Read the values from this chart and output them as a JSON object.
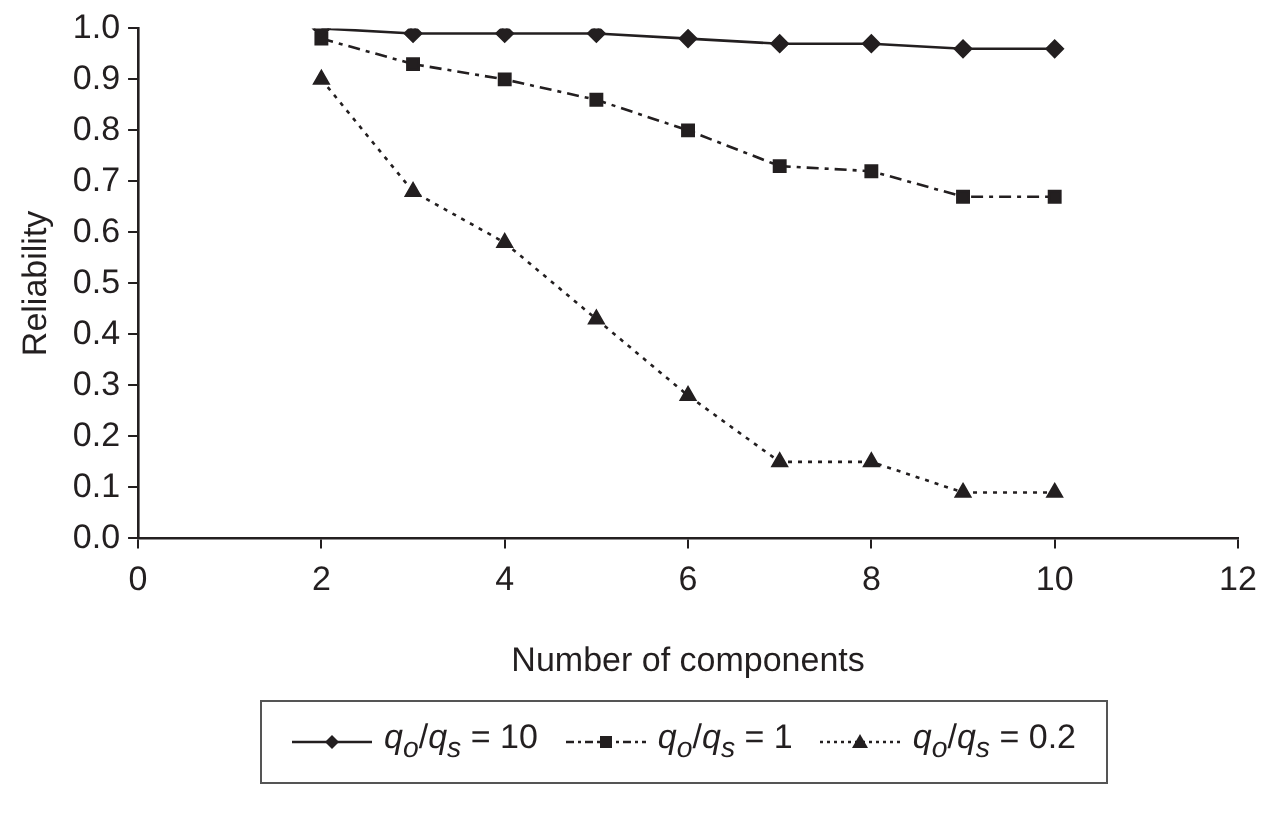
{
  "chart_data": {
    "type": "line",
    "xlabel": "Number of components",
    "ylabel": "Reliability",
    "x": [
      2,
      3,
      4,
      5,
      6,
      7,
      8,
      9,
      10
    ],
    "xlim": [
      0,
      12
    ],
    "xticks": [
      0,
      2,
      4,
      6,
      8,
      10,
      12
    ],
    "ylim": [
      0,
      1
    ],
    "yticks": [
      {
        "value": 0,
        "label": "0.0"
      },
      {
        "value": 0.1,
        "label": "0.1"
      },
      {
        "value": 0.2,
        "label": "0.2"
      },
      {
        "value": 0.3,
        "label": "0.3"
      },
      {
        "value": 0.4,
        "label": "0.4"
      },
      {
        "value": 0.5,
        "label": "0.5"
      },
      {
        "value": 0.6,
        "label": "0.6"
      },
      {
        "value": 0.7,
        "label": "0.7"
      },
      {
        "value": 0.8,
        "label": "0.8"
      },
      {
        "value": 0.9,
        "label": "0.9"
      },
      {
        "value": 1,
        "label": "1.0"
      }
    ],
    "grid": false,
    "legend": "bottom",
    "series": [
      {
        "name": "q$_{o}$/q$_{s}$ = 10",
        "color": "#231f20",
        "marker": "diamond",
        "line_style": "solid",
        "values": [
          1.0,
          0.99,
          0.99,
          0.99,
          0.98,
          0.97,
          0.97,
          0.96,
          0.96
        ]
      },
      {
        "name": "q$_{o}$/q$_{s}$ = 1",
        "color": "#231f20",
        "marker": "square",
        "line_style": "dashed",
        "values": [
          0.98,
          0.93,
          0.9,
          0.86,
          0.8,
          0.73,
          0.72,
          0.67,
          0.67
        ]
      },
      {
        "name": "q$_{o}$/q$_{s}$ = 0.2",
        "color": "#231f20",
        "marker": "triangle",
        "line_style": "dotted",
        "values": [
          0.9,
          0.68,
          0.58,
          0.43,
          0.28,
          0.15,
          0.15,
          0.09,
          0.09
        ]
      }
    ]
  }
}
